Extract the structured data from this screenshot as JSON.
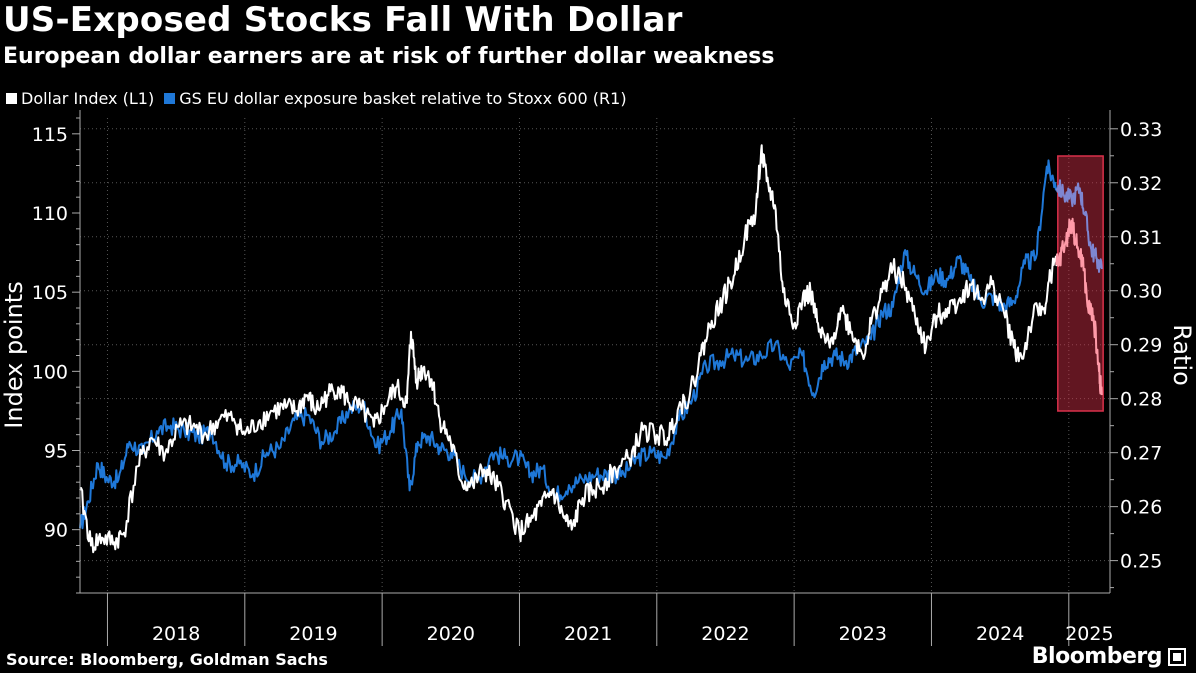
{
  "header": {
    "title": "US-Exposed Stocks Fall With Dollar",
    "subtitle": "European dollar earners are at risk of further dollar weakness"
  },
  "legend": {
    "items": [
      {
        "label": "Dollar Index (L1)",
        "color": "#ffffff"
      },
      {
        "label": "GS EU dollar exposure basket relative to Stoxx 600 (R1)",
        "color": "#1f78d8"
      }
    ]
  },
  "footer": {
    "source": "Source: Bloomberg, Goldman Sachs",
    "brand": "Bloomberg"
  },
  "chart_data": {
    "type": "line",
    "x_unit": "year",
    "x_range": [
      2017.8,
      2025.3
    ],
    "x_ticks": [
      "2018",
      "2019",
      "2020",
      "2021",
      "2022",
      "2023",
      "2024",
      "2025"
    ],
    "y_left": {
      "label": "Index points",
      "range": [
        86,
        116
      ],
      "ticks": [
        90,
        95,
        100,
        105,
        110,
        115
      ]
    },
    "y_right": {
      "label": "Ratio",
      "range": [
        0.244,
        0.332
      ],
      "ticks": [
        "0.25",
        "0.26",
        "0.27",
        "0.28",
        "0.29",
        "0.30",
        "0.31",
        "0.32",
        "0.33"
      ]
    },
    "grid": true,
    "highlight": {
      "x_from": 2024.92,
      "x_to": 2025.25,
      "color": "#d9304a"
    },
    "series": [
      {
        "name": "Dollar Index (L1)",
        "axis": "left",
        "color": "#ffffff",
        "highlight_color": "#ff9aa8",
        "points": [
          [
            2017.8,
            92.5
          ],
          [
            2017.88,
            89.0
          ],
          [
            2017.96,
            89.5
          ],
          [
            2018.05,
            89.2
          ],
          [
            2018.12,
            89.8
          ],
          [
            2018.22,
            94.0
          ],
          [
            2018.32,
            95.8
          ],
          [
            2018.42,
            94.8
          ],
          [
            2018.52,
            96.5
          ],
          [
            2018.62,
            96.5
          ],
          [
            2018.72,
            96.0
          ],
          [
            2018.82,
            97.0
          ],
          [
            2018.92,
            97.0
          ],
          [
            2019.0,
            96.0
          ],
          [
            2019.1,
            96.8
          ],
          [
            2019.2,
            97.5
          ],
          [
            2019.3,
            97.7
          ],
          [
            2019.38,
            97.5
          ],
          [
            2019.45,
            98.5
          ],
          [
            2019.52,
            97.5
          ],
          [
            2019.6,
            98.5
          ],
          [
            2019.68,
            99.0
          ],
          [
            2019.76,
            98.0
          ],
          [
            2019.85,
            97.6
          ],
          [
            2019.94,
            96.5
          ],
          [
            2020.02,
            97.8
          ],
          [
            2020.1,
            99.0
          ],
          [
            2020.18,
            98.0
          ],
          [
            2020.21,
            102.5
          ],
          [
            2020.25,
            99.5
          ],
          [
            2020.3,
            100.2
          ],
          [
            2020.36,
            99.5
          ],
          [
            2020.42,
            97.0
          ],
          [
            2020.5,
            95.5
          ],
          [
            2020.58,
            93.0
          ],
          [
            2020.66,
            92.8
          ],
          [
            2020.74,
            93.8
          ],
          [
            2020.82,
            93.0
          ],
          [
            2020.9,
            91.8
          ],
          [
            2021.0,
            89.8
          ],
          [
            2021.08,
            90.5
          ],
          [
            2021.16,
            91.5
          ],
          [
            2021.24,
            92.5
          ],
          [
            2021.32,
            90.8
          ],
          [
            2021.38,
            90.0
          ],
          [
            2021.46,
            92.0
          ],
          [
            2021.54,
            92.5
          ],
          [
            2021.62,
            93.0
          ],
          [
            2021.7,
            93.8
          ],
          [
            2021.8,
            94.5
          ],
          [
            2021.9,
            96.3
          ],
          [
            2022.0,
            96.0
          ],
          [
            2022.08,
            95.8
          ],
          [
            2022.16,
            97.8
          ],
          [
            2022.24,
            98.5
          ],
          [
            2022.32,
            101.0
          ],
          [
            2022.4,
            103.2
          ],
          [
            2022.48,
            104.5
          ],
          [
            2022.56,
            106.0
          ],
          [
            2022.64,
            108.5
          ],
          [
            2022.72,
            110.0
          ],
          [
            2022.76,
            114.0
          ],
          [
            2022.8,
            112.0
          ],
          [
            2022.86,
            110.5
          ],
          [
            2022.92,
            105.0
          ],
          [
            2023.0,
            103.0
          ],
          [
            2023.06,
            104.5
          ],
          [
            2023.12,
            105.0
          ],
          [
            2023.18,
            102.5
          ],
          [
            2023.26,
            101.5
          ],
          [
            2023.34,
            104.0
          ],
          [
            2023.42,
            102.5
          ],
          [
            2023.5,
            101.0
          ],
          [
            2023.56,
            103.0
          ],
          [
            2023.64,
            105.0
          ],
          [
            2023.72,
            106.5
          ],
          [
            2023.8,
            105.5
          ],
          [
            2023.88,
            103.5
          ],
          [
            2023.96,
            101.5
          ],
          [
            2024.04,
            103.5
          ],
          [
            2024.12,
            104.0
          ],
          [
            2024.2,
            104.5
          ],
          [
            2024.28,
            105.5
          ],
          [
            2024.36,
            104.5
          ],
          [
            2024.44,
            105.5
          ],
          [
            2024.52,
            104.0
          ],
          [
            2024.6,
            101.5
          ],
          [
            2024.66,
            100.8
          ],
          [
            2024.74,
            103.5
          ],
          [
            2024.82,
            104.0
          ],
          [
            2024.88,
            106.5
          ],
          [
            2024.93,
            107.0
          ],
          [
            2024.98,
            108.2
          ],
          [
            2025.02,
            109.5
          ],
          [
            2025.06,
            107.8
          ],
          [
            2025.1,
            107.0
          ],
          [
            2025.14,
            104.0
          ],
          [
            2025.18,
            103.5
          ],
          [
            2025.22,
            100.0
          ],
          [
            2025.24,
            98.5
          ]
        ]
      },
      {
        "name": "GS EU dollar exposure basket relative to Stoxx 600 (R1)",
        "axis": "right",
        "color": "#1f78d8",
        "highlight_color": "#7e86d2",
        "points": [
          [
            2017.8,
            0.256
          ],
          [
            2017.86,
            0.261
          ],
          [
            2017.93,
            0.268
          ],
          [
            2018.0,
            0.265
          ],
          [
            2018.08,
            0.265
          ],
          [
            2018.16,
            0.272
          ],
          [
            2018.26,
            0.27
          ],
          [
            2018.36,
            0.274
          ],
          [
            2018.46,
            0.275
          ],
          [
            2018.56,
            0.274
          ],
          [
            2018.66,
            0.273
          ],
          [
            2018.76,
            0.274
          ],
          [
            2018.86,
            0.268
          ],
          [
            2018.96,
            0.268
          ],
          [
            2019.06,
            0.266
          ],
          [
            2019.16,
            0.27
          ],
          [
            2019.26,
            0.271
          ],
          [
            2019.36,
            0.276
          ],
          [
            2019.46,
            0.277
          ],
          [
            2019.56,
            0.272
          ],
          [
            2019.66,
            0.274
          ],
          [
            2019.76,
            0.278
          ],
          [
            2019.86,
            0.279
          ],
          [
            2019.96,
            0.271
          ],
          [
            2020.06,
            0.274
          ],
          [
            2020.14,
            0.278
          ],
          [
            2020.2,
            0.263
          ],
          [
            2020.26,
            0.272
          ],
          [
            2020.34,
            0.273
          ],
          [
            2020.42,
            0.271
          ],
          [
            2020.5,
            0.27
          ],
          [
            2020.6,
            0.266
          ],
          [
            2020.7,
            0.265
          ],
          [
            2020.8,
            0.27
          ],
          [
            2020.9,
            0.269
          ],
          [
            2021.0,
            0.269
          ],
          [
            2021.08,
            0.266
          ],
          [
            2021.16,
            0.267
          ],
          [
            2021.26,
            0.262
          ],
          [
            2021.36,
            0.264
          ],
          [
            2021.46,
            0.265
          ],
          [
            2021.56,
            0.266
          ],
          [
            2021.66,
            0.266
          ],
          [
            2021.76,
            0.266
          ],
          [
            2021.86,
            0.269
          ],
          [
            2021.96,
            0.27
          ],
          [
            2022.06,
            0.269
          ],
          [
            2022.16,
            0.276
          ],
          [
            2022.26,
            0.28
          ],
          [
            2022.36,
            0.286
          ],
          [
            2022.46,
            0.287
          ],
          [
            2022.56,
            0.288
          ],
          [
            2022.66,
            0.287
          ],
          [
            2022.76,
            0.288
          ],
          [
            2022.86,
            0.29
          ],
          [
            2022.96,
            0.286
          ],
          [
            2023.06,
            0.288
          ],
          [
            2023.14,
            0.281
          ],
          [
            2023.22,
            0.287
          ],
          [
            2023.3,
            0.288
          ],
          [
            2023.38,
            0.287
          ],
          [
            2023.46,
            0.289
          ],
          [
            2023.56,
            0.291
          ],
          [
            2023.64,
            0.296
          ],
          [
            2023.72,
            0.297
          ],
          [
            2023.8,
            0.307
          ],
          [
            2023.88,
            0.303
          ],
          [
            2023.96,
            0.3
          ],
          [
            2024.04,
            0.303
          ],
          [
            2024.12,
            0.302
          ],
          [
            2024.2,
            0.306
          ],
          [
            2024.28,
            0.302
          ],
          [
            2024.36,
            0.298
          ],
          [
            2024.44,
            0.299
          ],
          [
            2024.52,
            0.297
          ],
          [
            2024.6,
            0.298
          ],
          [
            2024.68,
            0.305
          ],
          [
            2024.76,
            0.306
          ],
          [
            2024.84,
            0.323
          ],
          [
            2024.9,
            0.32
          ],
          [
            2024.96,
            0.318
          ],
          [
            2025.02,
            0.317
          ],
          [
            2025.08,
            0.319
          ],
          [
            2025.12,
            0.314
          ],
          [
            2025.16,
            0.308
          ],
          [
            2025.2,
            0.306
          ],
          [
            2025.24,
            0.304
          ]
        ]
      }
    ]
  }
}
